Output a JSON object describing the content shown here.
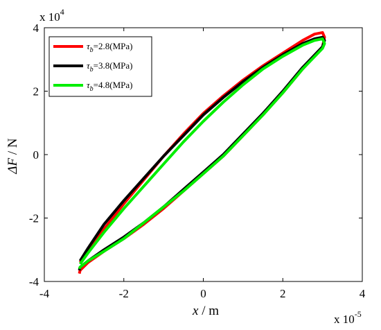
{
  "chart_data": {
    "type": "line",
    "title": "",
    "xlabel_var": "x",
    "xlabel_unit": " / m",
    "ylabel_var": "ΔF",
    "ylabel_unit": " / N",
    "x_multiplier": {
      "base": "x 10",
      "exp": "-5"
    },
    "y_multiplier": {
      "base": "x 10",
      "exp": "4"
    },
    "xlim": [
      -4e-05,
      4e-05
    ],
    "ylim": [
      -40000,
      40000
    ],
    "xticks": [
      -4e-05,
      -2e-05,
      0,
      2e-05,
      4e-05
    ],
    "yticks": [
      -40000,
      -20000,
      0,
      20000,
      40000
    ],
    "xtick_labels": [
      "-4",
      "-2",
      "0",
      "2",
      "4"
    ],
    "ytick_labels": [
      "-4",
      "-2",
      "0",
      "2",
      "4"
    ],
    "grid": false,
    "legend_position": "top-left",
    "series": [
      {
        "name": "τb=2.8(MPa)",
        "sym": "τ",
        "sub": "b",
        "rest": "=2.8(MPa)",
        "color": "#ff0000",
        "x": [
          -3.1e-05,
          -2.9e-05,
          -2.5e-05,
          -2e-05,
          -1.5e-05,
          -1e-05,
          -5e-06,
          0,
          5e-06,
          1e-05,
          1.5e-05,
          2e-05,
          2.5e-05,
          2.8e-05,
          3e-05,
          3.05e-05,
          3e-05,
          2.5e-05,
          2e-05,
          1.5e-05,
          1e-05,
          5e-06,
          0,
          -5e-06,
          -1e-05,
          -1.5e-05,
          -2e-05,
          -2.5e-05,
          -2.9e-05,
          -3.1e-05,
          -3.12e-05
        ],
        "y": [
          -34000,
          -30500,
          -23500,
          -15500,
          -8000,
          -500,
          6500,
          13000,
          18500,
          23500,
          28000,
          32000,
          36000,
          38000,
          38500,
          37000,
          34000,
          27000,
          19500,
          12500,
          6000,
          -500,
          -6000,
          -11500,
          -17000,
          -22000,
          -26500,
          -30500,
          -34000,
          -36500,
          -37500
        ]
      },
      {
        "name": "τb=3.8(MPa)",
        "sym": "τ",
        "sub": "b",
        "rest": "=3.8(MPa)",
        "color": "#000000",
        "x": [
          -3.1e-05,
          -2.9e-05,
          -2.5e-05,
          -2e-05,
          -1.5e-05,
          -1e-05,
          -5e-06,
          0,
          5e-06,
          1e-05,
          1.5e-05,
          2e-05,
          2.5e-05,
          2.8e-05,
          3e-05,
          3.05e-05,
          3e-05,
          2.5e-05,
          2e-05,
          1.5e-05,
          1e-05,
          5e-06,
          0,
          -5e-06,
          -1e-05,
          -1.5e-05,
          -2e-05,
          -2.5e-05,
          -2.9e-05,
          -3.1e-05,
          -3.12e-05
        ],
        "y": [
          -33500,
          -29500,
          -22000,
          -14500,
          -7500,
          -500,
          6000,
          12500,
          18000,
          23000,
          27500,
          31500,
          35000,
          36500,
          37000,
          36000,
          34000,
          27500,
          20000,
          13000,
          6500,
          0,
          -5500,
          -11000,
          -16500,
          -21500,
          -26000,
          -30000,
          -33500,
          -35500,
          -36500
        ]
      },
      {
        "name": "τb=4.8(MPa)",
        "sym": "τ",
        "sub": "b",
        "rest": "=4.8(MPa)",
        "color": "#00ee00",
        "x": [
          -3.1e-05,
          -2.9e-05,
          -2.5e-05,
          -2e-05,
          -1.5e-05,
          -1e-05,
          -5e-06,
          0,
          5e-06,
          1e-05,
          1.5e-05,
          2e-05,
          2.5e-05,
          2.8e-05,
          3e-05,
          3.05e-05,
          3e-05,
          2.5e-05,
          2e-05,
          1.5e-05,
          1e-05,
          5e-06,
          0,
          -5e-06,
          -1e-05,
          -1.5e-05,
          -2e-05,
          -2.5e-05,
          -2.9e-05,
          -3.1e-05,
          -3.12e-05
        ],
        "y": [
          -34500,
          -31000,
          -24500,
          -17000,
          -10000,
          -3000,
          4000,
          10500,
          16500,
          22000,
          27000,
          31000,
          34500,
          36000,
          36500,
          35000,
          33500,
          27000,
          19500,
          12500,
          6000,
          -500,
          -6000,
          -11500,
          -16500,
          -21500,
          -26500,
          -30500,
          -33500,
          -35500,
          -36000
        ]
      }
    ]
  }
}
